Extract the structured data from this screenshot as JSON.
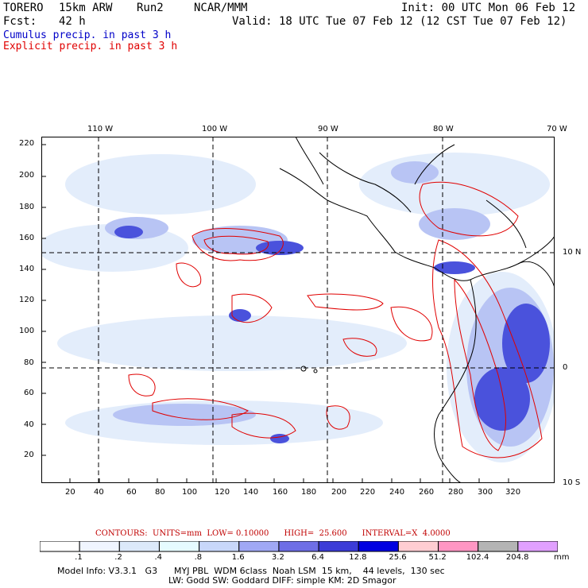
{
  "header": {
    "model": "TORERO",
    "resolution": "15km ARW",
    "run": "Run2",
    "org": "NCAR/MMM",
    "init": "Init: 00 UTC Mon 06 Feb 12",
    "fcst_label": "Fcst:",
    "fcst_value": "42 h",
    "valid": "Valid: 18 UTC Tue 07 Feb 12 (12 CST Tue 07 Feb 12)",
    "cumulus": "Cumulus precip. in past 3 h",
    "explicit": "Explicit precip. in past 3 h"
  },
  "map": {
    "lon_labels": [
      "110 W",
      "100 W",
      "90 W",
      "80 W",
      "70 W"
    ],
    "lat_labels": [
      "10 N",
      "0",
      "10 S"
    ],
    "y_ticks": [
      "220",
      "200",
      "180",
      "160",
      "140",
      "120",
      "100",
      "80",
      "60",
      "40",
      "20"
    ],
    "x_ticks": [
      "20",
      "40",
      "60",
      "80",
      "100",
      "120",
      "140",
      "160",
      "180",
      "200",
      "220",
      "240",
      "260",
      "280",
      "300",
      "320"
    ]
  },
  "contours": {
    "label": "CONTOURS:",
    "units": "UNITS=mm",
    "low": "LOW= 0.10000",
    "high": "HIGH=  25.600",
    "interval": "INTERVAL=X  4.0000"
  },
  "colorbar": {
    "labels": [
      ".1",
      ".2",
      ".4",
      ".8",
      "1.6",
      "3.2",
      "6.4",
      "12.8",
      "25.6",
      "51.2",
      "102.4",
      "204.8"
    ],
    "unit": "mm",
    "colors": [
      "#ffffff",
      "#f0f5ff",
      "#dce9fa",
      "#e6fbff",
      "#c8d7fa",
      "#a0a8f5",
      "#6e6ee6",
      "#3c3cd7",
      "#0000e1",
      "#ffcdd2",
      "#ff96c3",
      "#b4b4b4",
      "#e1a0ff"
    ]
  },
  "footer": {
    "line1": "Model Info: V3.3.1   G3      MYJ PBL  WDM 6class  Noah LSM  15 km,    44 levels,  130 sec",
    "line2": "LW: Godd SW: Goddard DIFF: simple KM: 2D Smagor"
  }
}
